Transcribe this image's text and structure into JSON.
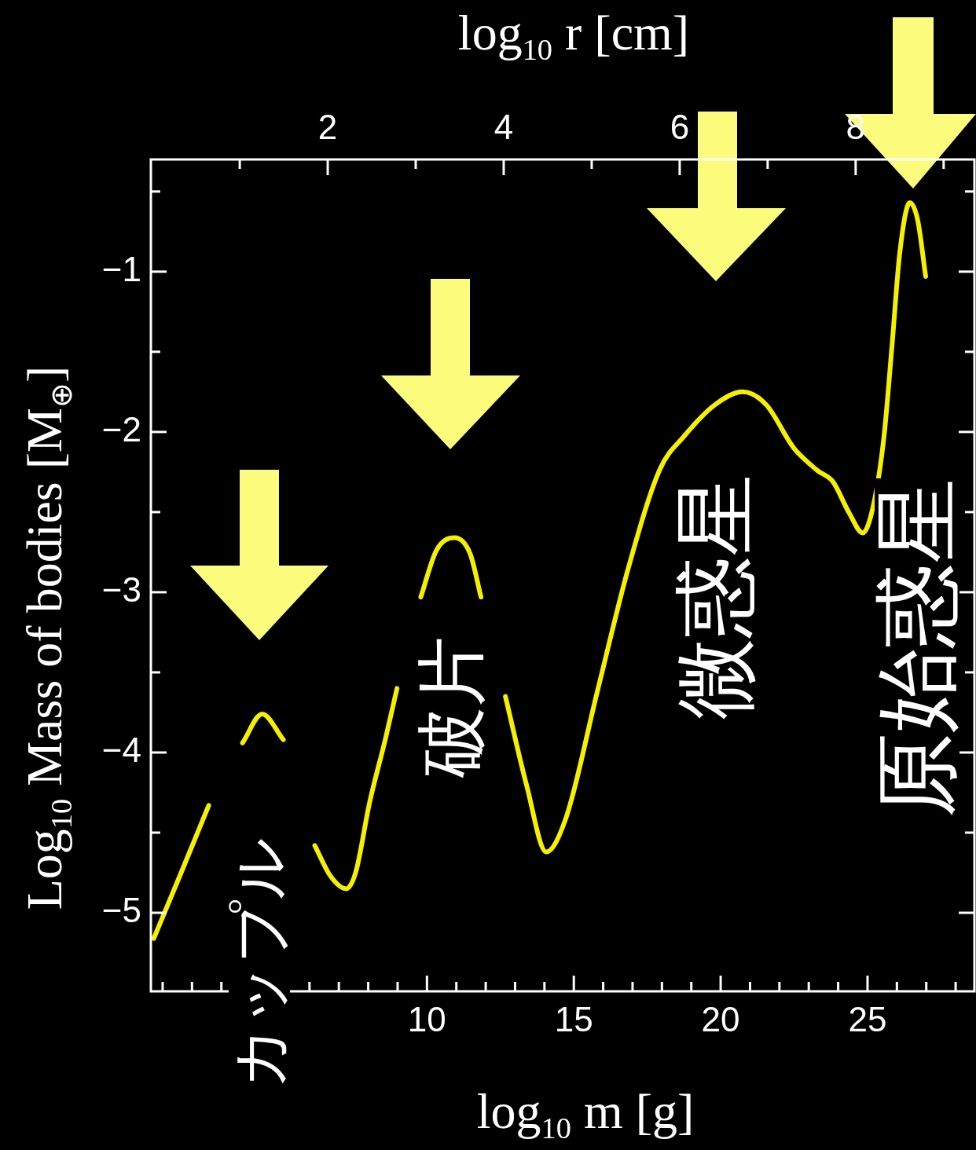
{
  "chart_data": {
    "type": "line",
    "x2label": "log$_{10}$  r [cm]",
    "xlabel": "log$_{10}$  m [g]",
    "ylabel": "Log$_{10}$  Mass of bodies [M$_{⊕}$]",
    "xlim": [
      0.6,
      28.64
    ],
    "xticks": [
      {
        "value": 1,
        "label": null
      },
      {
        "value": 2,
        "label": null
      },
      {
        "value": 3,
        "label": null
      },
      {
        "value": 4,
        "label": null
      },
      {
        "value": 5,
        "label": null
      },
      {
        "value": 6,
        "label": null
      },
      {
        "value": 7,
        "label": null
      },
      {
        "value": 8,
        "label": null
      },
      {
        "value": 9,
        "label": null
      },
      10,
      {
        "value": 11,
        "label": null
      },
      {
        "value": 12,
        "label": null
      },
      {
        "value": 13,
        "label": null
      },
      {
        "value": 14,
        "label": null
      },
      15,
      {
        "value": 16,
        "label": null
      },
      {
        "value": 17,
        "label": null
      },
      {
        "value": 18,
        "label": null
      },
      {
        "value": 19,
        "label": null
      },
      20,
      {
        "value": 21,
        "label": null
      },
      {
        "value": 22,
        "label": null
      },
      {
        "value": 23,
        "label": null
      },
      {
        "value": 24,
        "label": null
      },
      25,
      {
        "value": 26,
        "label": null
      },
      {
        "value": 27,
        "label": null
      },
      {
        "value": 28,
        "label": null
      }
    ],
    "x2lim": [
      -0.01,
      9.35
    ],
    "x2ticks": [
      {
        "value": 1,
        "label": null
      },
      2,
      {
        "value": 3,
        "label": null
      },
      4,
      {
        "value": 5,
        "label": null
      },
      6,
      {
        "value": 7,
        "label": null
      },
      8,
      {
        "value": 9,
        "label": null
      }
    ],
    "ylim": [
      -5.49,
      -0.3
    ],
    "yticks": [
      {
        "value": -0.5,
        "label": null
      },
      {
        "value": -1,
        "label": "−1"
      },
      {
        "value": -1.5,
        "label": null
      },
      {
        "value": -2,
        "label": "−2"
      },
      {
        "value": -2.5,
        "label": null
      },
      {
        "value": -3,
        "label": "−3"
      },
      {
        "value": -3.5,
        "label": null
      },
      {
        "value": -4,
        "label": "−4"
      },
      {
        "value": -4.5,
        "label": null
      },
      {
        "value": -5,
        "label": "−5"
      }
    ],
    "marker": "none",
    "line_style": "solid",
    "legend": false,
    "series": [
      {
        "color": "#f5ef00",
        "x": [
          0.7,
          1.63,
          2.57,
          3.1,
          3.72,
          4.39,
          5.11,
          5.6,
          6.18,
          6.71,
          7.25,
          7.57,
          8.05,
          8.58,
          8.98,
          9.4,
          9.79,
          10.32,
          10.94,
          11.47,
          11.84,
          12.2,
          12.67,
          13.4,
          14.06,
          14.73,
          15.8,
          16.87,
          17.94,
          18.74,
          19.81,
          20.75,
          21.55,
          22.49,
          23.29,
          23.82,
          24.36,
          24.84,
          25.21,
          25.56,
          25.83,
          26.1,
          26.44,
          26.71,
          26.98
        ],
        "values": [
          -5.16,
          -4.75,
          -4.33,
          null,
          -3.94,
          -3.76,
          -3.92,
          null,
          -4.58,
          -4.77,
          -4.85,
          -4.75,
          -4.31,
          -3.92,
          -3.6,
          null,
          -3.03,
          -2.74,
          -2.66,
          -2.76,
          -3.03,
          null,
          -3.65,
          -4.21,
          -4.62,
          -4.41,
          -3.62,
          -2.84,
          -2.23,
          -2.03,
          -1.83,
          -1.75,
          -1.83,
          -2.1,
          -2.24,
          -2.31,
          -2.5,
          -2.63,
          -2.45,
          -2.03,
          -1.47,
          -0.88,
          -0.57,
          -0.68,
          -1.03
        ]
      }
    ],
    "annotations": [
      "カップル",
      "破片",
      "微惑星",
      "原始惑星"
    ]
  }
}
